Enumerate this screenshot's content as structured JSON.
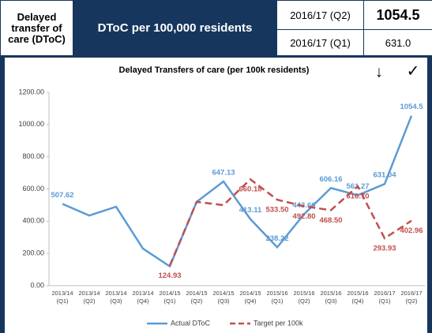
{
  "header": {
    "title": "Delayed transfer of care (DToC)",
    "metric": "DToC per 100,000 residents",
    "period_current": "2016/17 (Q2)",
    "period_previous": "2016/17 (Q1)",
    "value_current": "1054.5",
    "value_previous": "631.0"
  },
  "chart_data": {
    "type": "line",
    "title": "Delayed Transfers of care (per 100k residents)",
    "trend_icon": "↓",
    "status_icon": "✓",
    "categories": [
      [
        "2013/14",
        "(Q1)"
      ],
      [
        "2013/14",
        "(Q2)"
      ],
      [
        "2013/14",
        "(Q3)"
      ],
      [
        "2013/14",
        "(Q4)"
      ],
      [
        "2014/15",
        "(Q1)"
      ],
      [
        "2014/15",
        "(Q2)"
      ],
      [
        "2014/15",
        "(Q3)"
      ],
      [
        "2014/15",
        "(Q4)"
      ],
      [
        "2015/16",
        "(Q1)"
      ],
      [
        "2015/16",
        "(Q2)"
      ],
      [
        "2015/16",
        "(Q3)"
      ],
      [
        "2015/16",
        "(Q4)"
      ],
      [
        "2016/17",
        "(Q1)"
      ],
      [
        "2016/17",
        "(Q2)"
      ]
    ],
    "series": [
      {
        "name": "Actual DToC",
        "color": "#5b9bd5",
        "dash": false,
        "values": [
          507.62,
          435,
          490,
          230,
          120,
          520,
          647.13,
          413.11,
          238.22,
          443.66,
          606.16,
          561.27,
          631.04,
          1054.5
        ],
        "value_labels": [
          "507.62",
          null,
          null,
          null,
          null,
          null,
          "647.13",
          "413.11",
          "238.22",
          "443.66",
          "606.16",
          "561.27",
          "631.04",
          "1054.5"
        ]
      },
      {
        "name": "Target per 100k",
        "color": "#c0504d",
        "dash": true,
        "values": [
          null,
          null,
          null,
          null,
          124.93,
          520,
          500,
          660.18,
          533.5,
          492.8,
          468.5,
          616.7,
          293.93,
          402.96
        ],
        "value_labels": [
          null,
          null,
          null,
          null,
          "124.93",
          null,
          null,
          "660.18",
          "533.50",
          "492.80",
          "468.50",
          "616.70",
          "293.93",
          "402.96"
        ]
      }
    ],
    "ylim": [
      0,
      1200
    ],
    "yticks": [
      {
        "value": 0,
        "label": "0.00"
      },
      {
        "value": 200,
        "label": "200.00"
      },
      {
        "value": 400,
        "label": "400.00"
      },
      {
        "value": 600,
        "label": "600.00"
      },
      {
        "value": 800,
        "label": "800.00"
      },
      {
        "value": 1000,
        "label": "1000.00"
      },
      {
        "value": 1200,
        "label": "1200.00"
      }
    ],
    "grid": false
  }
}
